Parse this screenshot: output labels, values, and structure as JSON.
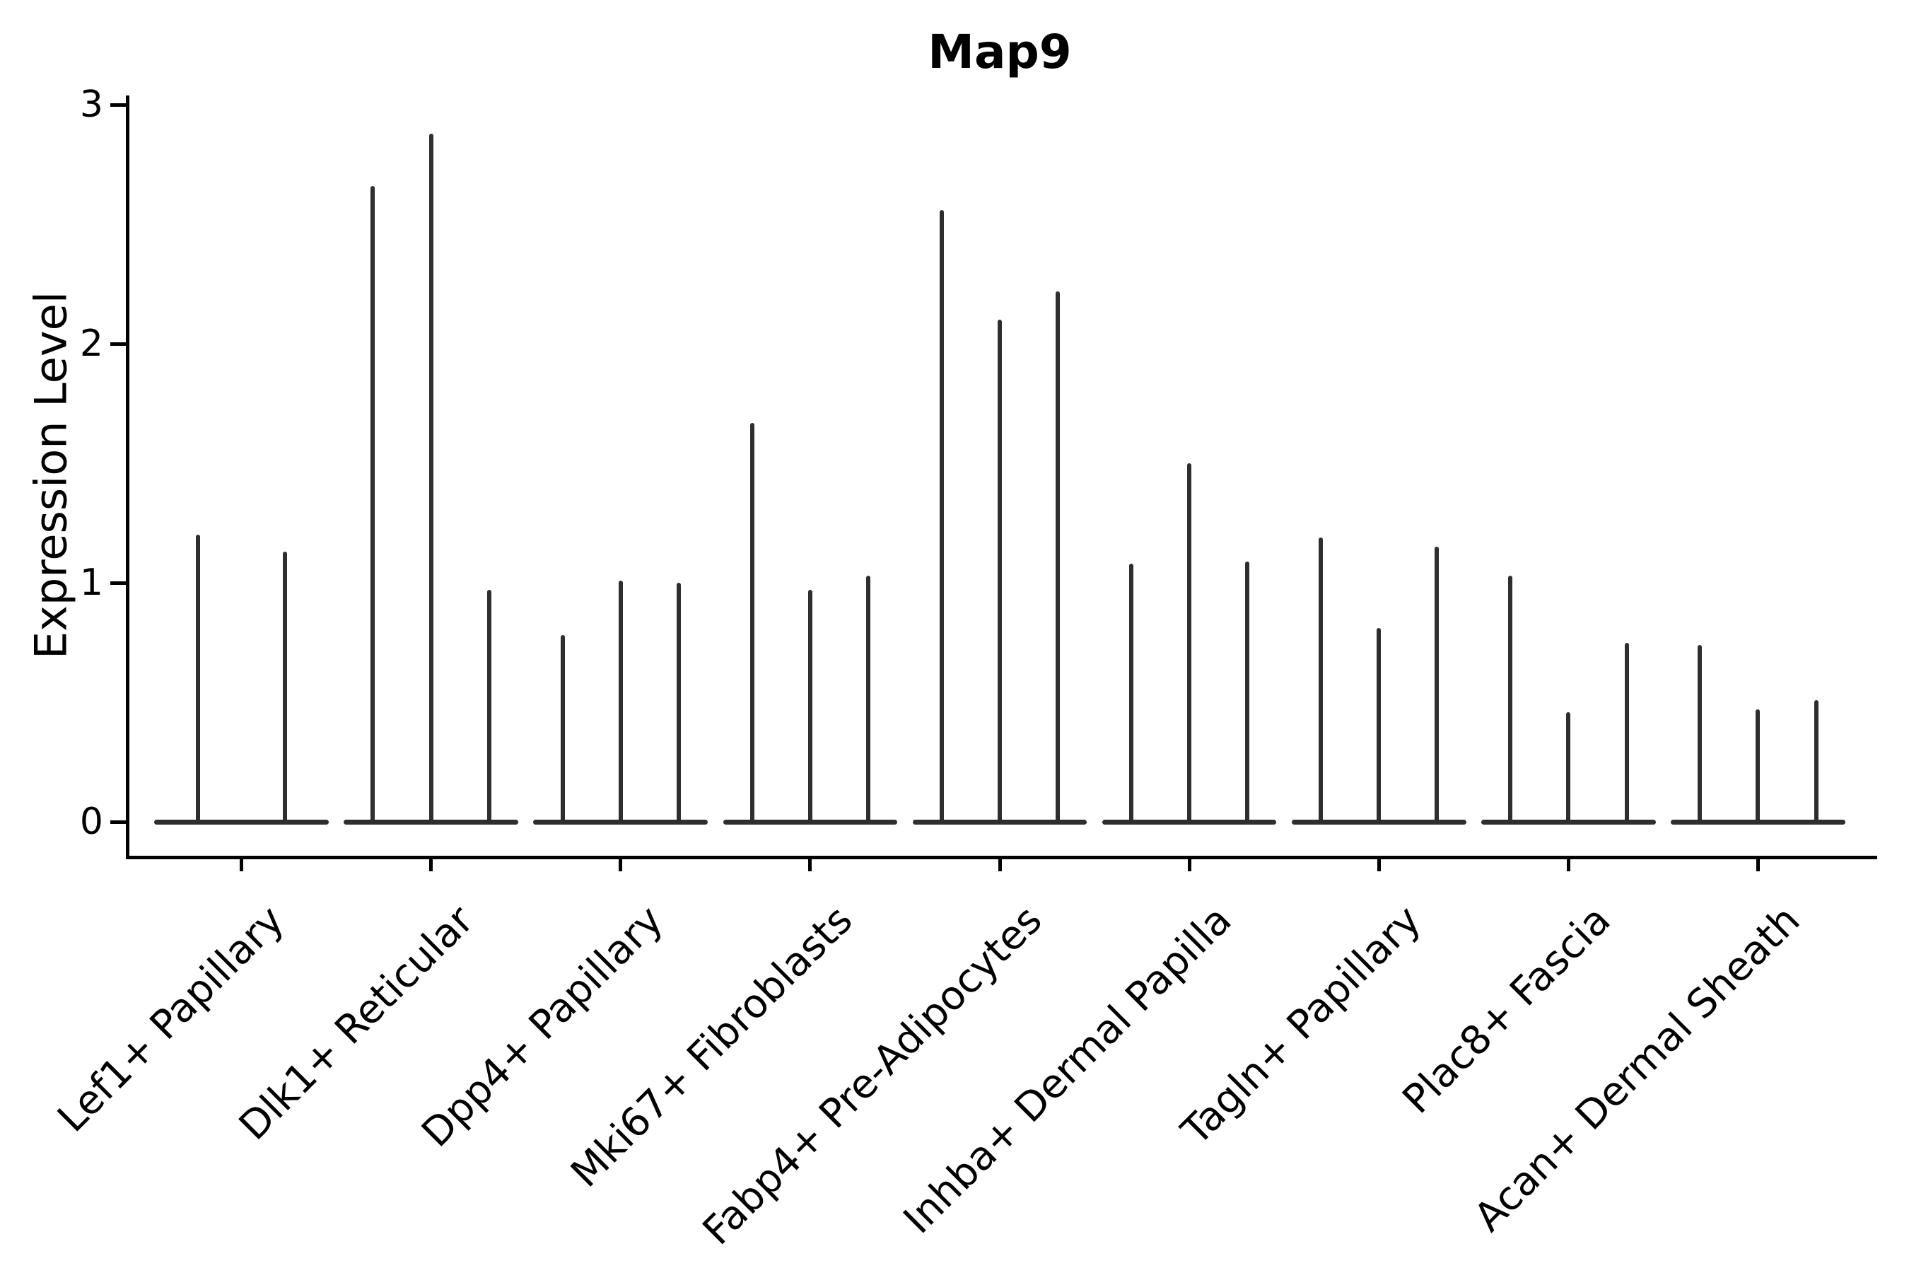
{
  "title": "Map9",
  "colors": {
    "violin": "#2e2e2e",
    "axis": "#000000",
    "text": "#000000",
    "background": "#ffffff"
  },
  "chart_data": {
    "type": "violin",
    "title": "Map9",
    "xlabel": "",
    "ylabel": "Expression Level",
    "ylim": [
      0,
      3.1
    ],
    "yticks": [
      0,
      1,
      2,
      3
    ],
    "grid": false,
    "legend": "none",
    "categories": [
      "Lef1+ Papillary",
      "Dlk1+ Reticular",
      "Dpp4+ Papillary",
      "Mki67+ Fibroblasts",
      "Fabp4+ Pre-Adipocytes",
      "Inhba+ Dermal Papilla",
      "Tagln+ Papillary",
      "Plac8+ Fascia",
      "Acan+ Dermal Sheath"
    ],
    "groups": [
      {
        "label": "Lef1+ Papillary",
        "violin_max_heights": [
          1.2,
          1.13
        ]
      },
      {
        "label": "Dlk1+ Reticular",
        "violin_max_heights": [
          2.66,
          2.88,
          0.97
        ]
      },
      {
        "label": "Dpp4+ Papillary",
        "violin_max_heights": [
          0.78,
          1.01,
          1.0
        ]
      },
      {
        "label": "Mki67+ Fibroblasts",
        "violin_max_heights": [
          1.67,
          0.97,
          1.03
        ]
      },
      {
        "label": "Fabp4+ Pre-Adipocytes",
        "violin_max_heights": [
          2.56,
          2.1,
          2.22
        ]
      },
      {
        "label": "Inhba+ Dermal Papilla",
        "violin_max_heights": [
          1.08,
          1.5,
          1.09
        ]
      },
      {
        "label": "Tagln+ Papillary",
        "violin_max_heights": [
          1.19,
          0.81,
          1.15
        ]
      },
      {
        "label": "Plac8+ Fascia",
        "violin_max_heights": [
          1.03,
          0.46,
          0.75
        ]
      },
      {
        "label": "Acan+ Dermal Sheath",
        "violin_max_heights": [
          0.74,
          0.47,
          0.51
        ]
      }
    ]
  }
}
